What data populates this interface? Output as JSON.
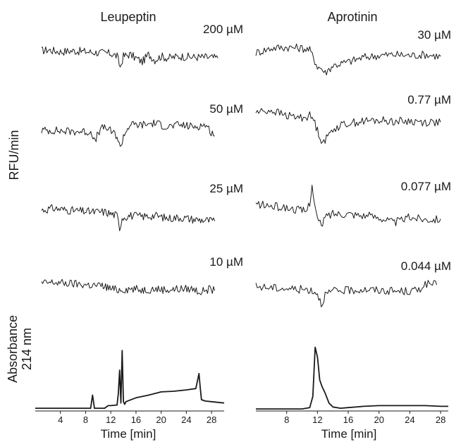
{
  "chart_data": {
    "type": "line",
    "y_label_traces": "RFU/min",
    "y_label_chrom": [
      "Absorbance",
      "214 nm"
    ],
    "panels": [
      {
        "title": "Leupeptin",
        "xlabel": "Time [min]",
        "xlim": [
          0,
          30
        ],
        "xticks": [
          4,
          8,
          12,
          16,
          20,
          24,
          28
        ],
        "concentrations": [
          {
            "label": "200 µM",
            "x": [
              1,
              2,
              4,
              6,
              8,
              10,
              12,
              13,
              13.5,
              14,
              15,
              17,
              18,
              19,
              20,
              21,
              23,
              25,
              27,
              29
            ],
            "y": [
              0,
              0.05,
              -0.05,
              0.0,
              -0.05,
              -0.1,
              -0.15,
              -0.3,
              -0.9,
              -0.3,
              -0.2,
              -0.6,
              -0.2,
              -0.5,
              -0.3,
              -0.4,
              -0.3,
              -0.35,
              -0.35,
              -0.4
            ]
          },
          {
            "label": "50 µM",
            "x": [
              1,
              3,
              5,
              7,
              9,
              9.5,
              10,
              11,
              13,
              13.5,
              14,
              15,
              17,
              19,
              21,
              23,
              25,
              27,
              28.5
            ],
            "y": [
              0,
              0.0,
              -0.05,
              -0.05,
              -0.1,
              -0.7,
              -0.1,
              0.2,
              -0.3,
              -1.0,
              -0.3,
              0.3,
              0.3,
              0.4,
              0.2,
              0.3,
              0.2,
              0.3,
              -0.3
            ]
          },
          {
            "label": "25 µM",
            "x": [
              1,
              3,
              5,
              7,
              9,
              11,
              12,
              13,
              13.4,
              13.8,
              15,
              17,
              19,
              21,
              23,
              25,
              27,
              28.5
            ],
            "y": [
              0,
              0.1,
              0.0,
              -0.05,
              -0.1,
              -0.1,
              -0.2,
              -0.3,
              -1.0,
              -0.4,
              -0.3,
              -0.35,
              -0.3,
              -0.45,
              -0.4,
              -0.5,
              -0.55,
              -0.6
            ]
          },
          {
            "label": "10 µM",
            "x": [
              1,
              3,
              5,
              7,
              9,
              11,
              12,
              13,
              15,
              17,
              19,
              21,
              23,
              25,
              26.5,
              27,
              28.5
            ],
            "y": [
              0,
              0.05,
              0.0,
              -0.05,
              -0.1,
              -0.15,
              -0.3,
              -0.35,
              -0.3,
              -0.35,
              -0.3,
              -0.35,
              -0.3,
              -0.3,
              -0.5,
              -0.3,
              -0.4
            ]
          }
        ],
        "chromatogram": {
          "x": [
            0,
            8,
            8.8,
            9.1,
            9.4,
            10,
            11,
            11.6,
            12,
            13,
            13.2,
            13.4,
            13.6,
            13.8,
            14,
            14.2,
            14.4,
            16,
            18,
            20,
            22,
            24,
            25.5,
            26,
            26.2,
            26.4,
            27,
            28,
            30
          ],
          "y": [
            0.02,
            0.02,
            0.02,
            0.22,
            0.02,
            0.02,
            0.02,
            0.06,
            0.06,
            0.07,
            0.25,
            0.6,
            0.1,
            0.9,
            0.12,
            0.08,
            0.12,
            0.18,
            0.22,
            0.27,
            0.28,
            0.3,
            0.32,
            0.55,
            0.33,
            0.15,
            0.13,
            0.12,
            0.1
          ]
        }
      },
      {
        "title": "Aprotinin",
        "xlabel": "Time [min]",
        "xlim": [
          4,
          29
        ],
        "xticks": [
          8,
          12,
          16,
          20,
          24,
          28
        ],
        "concentrations": [
          {
            "label": "30 µM",
            "x": [
              4,
              6,
              8,
              10,
              11,
              12,
              12.5,
              13,
              14,
              16,
              18,
              20,
              22,
              24,
              26,
              28
            ],
            "y": [
              0.2,
              0.45,
              0.5,
              0.45,
              0.35,
              -0.55,
              -0.65,
              -0.9,
              -0.5,
              -0.3,
              -0.05,
              0.05,
              0.1,
              0.05,
              0.1,
              0.0
            ]
          },
          {
            "label": "0.77 µM",
            "x": [
              4,
              6,
              8,
              10,
              11,
              11.5,
              12,
              12.5,
              13,
              14,
              16,
              18,
              20,
              22,
              24,
              26,
              28
            ],
            "y": [
              0.5,
              0.6,
              0.3,
              0.2,
              0.3,
              0.1,
              -0.5,
              -1.0,
              -1.05,
              -0.4,
              -0.1,
              0.0,
              0.05,
              0.0,
              0.0,
              -0.05,
              -0.05
            ]
          },
          {
            "label": "0.077 µM",
            "x": [
              4,
              6,
              8,
              9.5,
              10.5,
              11,
              11.3,
              11.6,
              12,
              12.5,
              13,
              14,
              16,
              18,
              20,
              22,
              24,
              26,
              28
            ],
            "y": [
              0.2,
              0.1,
              0.0,
              -0.1,
              -0.2,
              0.3,
              1.3,
              0.2,
              -0.6,
              -1.0,
              -0.5,
              -0.3,
              -0.3,
              -0.4,
              -0.5,
              -0.8,
              -0.5,
              -0.6,
              -0.6
            ]
          },
          {
            "label": "0.044 µM",
            "x": [
              4,
              6,
              8,
              10,
              11,
              12,
              12.5,
              13,
              14,
              16,
              18,
              20,
              22,
              24,
              25,
              26,
              27.5
            ],
            "y": [
              0.05,
              0.0,
              -0.05,
              -0.1,
              -0.1,
              -0.3,
              -0.9,
              -0.4,
              -0.2,
              -0.15,
              -0.1,
              -0.15,
              -0.2,
              -0.2,
              -0.15,
              0.2,
              0.15
            ]
          }
        ],
        "chromatogram": {
          "x": [
            4,
            10,
            11,
            11.4,
            11.7,
            12,
            12.3,
            12.6,
            13,
            13.5,
            14,
            15,
            16,
            18,
            20,
            22,
            24,
            26,
            28,
            29
          ],
          "y": [
            0.01,
            0.01,
            0.03,
            0.2,
            0.95,
            0.8,
            0.45,
            0.35,
            0.25,
            0.1,
            0.04,
            0.02,
            0.03,
            0.05,
            0.06,
            0.06,
            0.06,
            0.06,
            0.05,
            0.05
          ]
        }
      }
    ]
  }
}
